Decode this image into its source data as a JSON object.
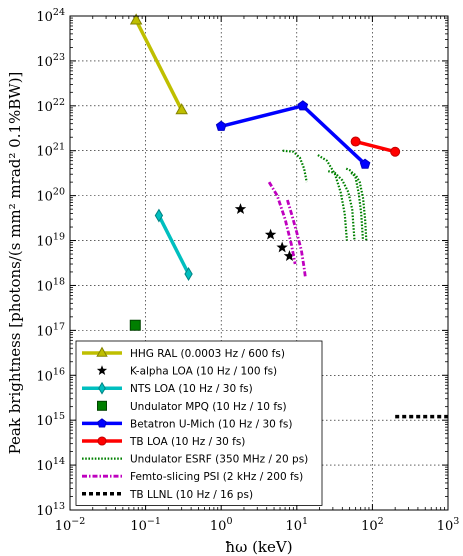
{
  "chart_data": {
    "type": "line",
    "title": "",
    "xlabel": "ħω (keV)",
    "ylabel": "Peak brightness [photons/(s mm² mrad² 0.1%BW)]",
    "x_scale": "log",
    "y_scale": "log",
    "xlim": [
      0.01,
      1000
    ],
    "ylim": [
      10000000000000.0,
      1e+24
    ],
    "grid": true,
    "legend_position": "lower-left",
    "x_ticks": [
      {
        "value": 0.01,
        "base": "10",
        "exp": "−2"
      },
      {
        "value": 0.1,
        "base": "10",
        "exp": "−1"
      },
      {
        "value": 1,
        "base": "10",
        "exp": "0"
      },
      {
        "value": 10,
        "base": "10",
        "exp": "1"
      },
      {
        "value": 100,
        "base": "10",
        "exp": "2"
      },
      {
        "value": 1000,
        "base": "10",
        "exp": "3"
      }
    ],
    "y_ticks": [
      {
        "value": 10000000000000.0,
        "base": "10",
        "exp": "13"
      },
      {
        "value": 100000000000000.0,
        "base": "10",
        "exp": "14"
      },
      {
        "value": 1000000000000000.0,
        "base": "10",
        "exp": "15"
      },
      {
        "value": 1e+16,
        "base": "10",
        "exp": "16"
      },
      {
        "value": 1e+17,
        "base": "10",
        "exp": "17"
      },
      {
        "value": 1e+18,
        "base": "10",
        "exp": "18"
      },
      {
        "value": 1e+19,
        "base": "10",
        "exp": "19"
      },
      {
        "value": 1e+20,
        "base": "10",
        "exp": "20"
      },
      {
        "value": 1e+21,
        "base": "10",
        "exp": "21"
      },
      {
        "value": 1e+22,
        "base": "10",
        "exp": "22"
      },
      {
        "value": 1e+23,
        "base": "10",
        "exp": "23"
      },
      {
        "value": 1e+24,
        "base": "10",
        "exp": "24"
      }
    ],
    "series": [
      {
        "name": "HHG RAL (0.0003 Hz / 600 fs)",
        "color": "#bfbf00",
        "line": "solid",
        "marker": "triangle",
        "segments": [
          [
            [
              0.075,
              8e+23
            ],
            [
              0.3,
              8e+21
            ]
          ]
        ]
      },
      {
        "name": "K-alpha LOA (10 Hz / 100 fs)",
        "color": "#000000",
        "line": "none",
        "marker": "star",
        "segments": [
          [
            [
              1.8,
              5e+19
            ],
            [
              4.5,
              1.35e+19
            ],
            [
              6.4,
              7e+18
            ],
            [
              8.0,
              4.5e+18
            ]
          ]
        ]
      },
      {
        "name": "NTS LOA (10 Hz / 30 fs)",
        "color": "#00bfbf",
        "line": "solid",
        "marker": "diamond",
        "segments": [
          [
            [
              0.15,
              3.6e+19
            ],
            [
              0.37,
              1.8e+18
            ]
          ]
        ]
      },
      {
        "name": "Undulator MPQ (10 Hz / 10 fs)",
        "color": "#007f00",
        "line": "none",
        "marker": "square",
        "segments": [
          [
            [
              0.073,
              1.3e+17
            ]
          ]
        ]
      },
      {
        "name": "Betatron U-Mich (10 Hz / 30 fs)",
        "color": "#0000ff",
        "line": "solid",
        "marker": "pentagon",
        "segments": [
          [
            [
              1.0,
              3.5e+21
            ],
            [
              12,
              1e+22
            ],
            [
              80,
              5e+20
            ]
          ]
        ]
      },
      {
        "name": "TB LOA (10 Hz / 30 fs)",
        "color": "#ff0000",
        "line": "solid",
        "marker": "circle",
        "segments": [
          [
            [
              60,
              1.6e+21
            ],
            [
              200,
              9.5e+20
            ]
          ]
        ]
      },
      {
        "name": "Undulator ESRF (350 MHz / 20 ps)",
        "color": "#008000",
        "line": "dotted",
        "marker": "none",
        "segments": [
          [
            [
              6.5,
              1e+21
            ],
            [
              9,
              9.5e+20
            ],
            [
              11,
              7e+20
            ],
            [
              12.5,
              4e+20
            ],
            [
              13.5,
              2e+20
            ]
          ],
          [
            [
              19,
              8e+20
            ],
            [
              25,
              6e+20
            ],
            [
              32,
              3e+20
            ],
            [
              38,
              1.2e+20
            ],
            [
              43,
              4e+19
            ],
            [
              46,
              1e+19
            ]
          ],
          [
            [
              26,
              3.5e+20
            ],
            [
              32,
              3.2e+20
            ],
            [
              40,
              2.2e+20
            ],
            [
              48,
              1.2e+20
            ],
            [
              54,
              5e+19
            ],
            [
              58,
              1e+19
            ]
          ],
          [
            [
              45,
              4e+20
            ],
            [
              52,
              3.6e+20
            ],
            [
              60,
              2.5e+20
            ],
            [
              66,
              1.1e+20
            ],
            [
              71,
              4e+19
            ],
            [
              75,
              1e+19
            ]
          ],
          [
            [
              52,
              3.2e+20
            ],
            [
              60,
              2.9e+20
            ],
            [
              68,
              2e+20
            ],
            [
              75,
              9e+19
            ],
            [
              80,
              3e+19
            ],
            [
              83,
              1e+19
            ]
          ]
        ]
      },
      {
        "name": "Femto-slicing PSI (2 kHz / 200 fs)",
        "color": "#bf00bf",
        "line": "dashdot",
        "marker": "none",
        "segments": [
          [
            [
              4.3,
              2e+20
            ],
            [
              5.5,
              1e+20
            ],
            [
              7,
              3e+19
            ],
            [
              8.5,
              8e+18
            ],
            [
              9.5,
              3e+18
            ]
          ],
          [
            [
              7.5,
              8e+19
            ],
            [
              8.7,
              3.5e+19
            ],
            [
              10,
              1.5e+19
            ],
            [
              11.5,
              6e+18
            ],
            [
              12.5,
              2.5e+18
            ],
            [
              13,
              1.5e+18
            ]
          ]
        ]
      },
      {
        "name": "TB LLNL (10 Hz / 16 ps)",
        "color": "#000000",
        "line": "dashed",
        "marker": "none",
        "segments": [
          [
            [
              200,
              1200000000000000.0
            ],
            [
              1000,
              1200000000000000.0
            ]
          ]
        ]
      }
    ]
  }
}
